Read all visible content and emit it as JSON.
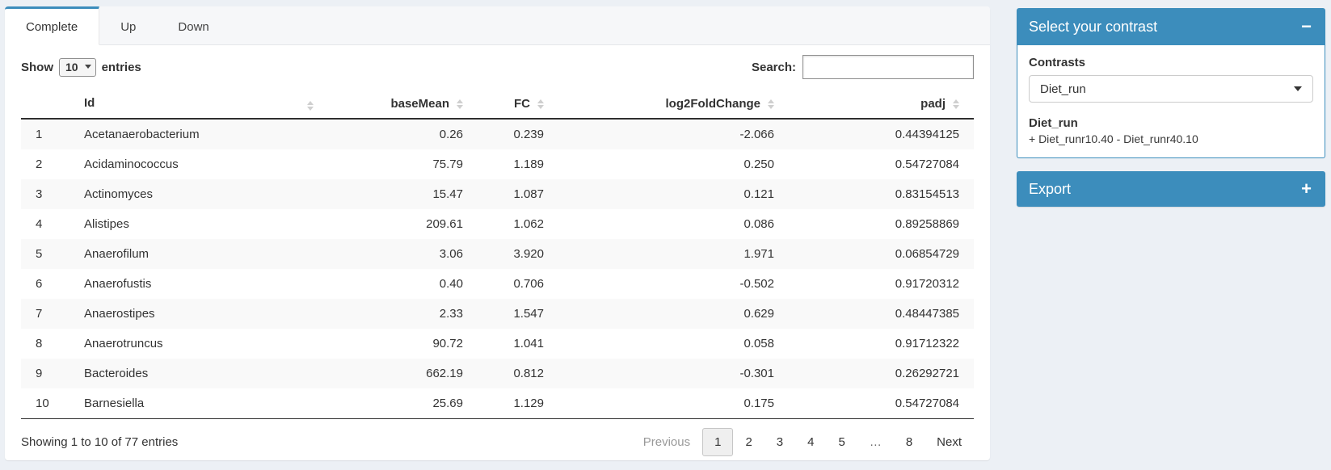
{
  "colors": {
    "accent": "#3c8dbc",
    "page_bg": "#ecf0f5"
  },
  "tabs": {
    "complete": "Complete",
    "up": "Up",
    "down": "Down"
  },
  "length_control": {
    "show_label": "Show",
    "selected": "10",
    "entries_label": "entries"
  },
  "search": {
    "label": "Search:",
    "value": "",
    "placeholder": ""
  },
  "table": {
    "columns": [
      "",
      "Id",
      "baseMean",
      "FC",
      "log2FoldChange",
      "padj"
    ],
    "rows": [
      [
        "1",
        "Acetanaerobacterium",
        "0.26",
        "0.239",
        "-2.066",
        "0.44394125"
      ],
      [
        "2",
        "Acidaminococcus",
        "75.79",
        "1.189",
        "0.250",
        "0.54727084"
      ],
      [
        "3",
        "Actinomyces",
        "15.47",
        "1.087",
        "0.121",
        "0.83154513"
      ],
      [
        "4",
        "Alistipes",
        "209.61",
        "1.062",
        "0.086",
        "0.89258869"
      ],
      [
        "5",
        "Anaerofilum",
        "3.06",
        "3.920",
        "1.971",
        "0.06854729"
      ],
      [
        "6",
        "Anaerofustis",
        "0.40",
        "0.706",
        "-0.502",
        "0.91720312"
      ],
      [
        "7",
        "Anaerostipes",
        "2.33",
        "1.547",
        "0.629",
        "0.48447385"
      ],
      [
        "8",
        "Anaerotruncus",
        "90.72",
        "1.041",
        "0.058",
        "0.91712322"
      ],
      [
        "9",
        "Bacteroides",
        "662.19",
        "0.812",
        "-0.301",
        "0.26292721"
      ],
      [
        "10",
        "Barnesiella",
        "25.69",
        "1.129",
        "0.175",
        "0.54727084"
      ]
    ],
    "info": "Showing 1 to 10 of 77 entries"
  },
  "pagination": {
    "previous": "Previous",
    "pages": [
      "1",
      "2",
      "3",
      "4",
      "5",
      "…",
      "8"
    ],
    "current": "1",
    "next": "Next"
  },
  "contrast_box": {
    "title": "Select your contrast",
    "collapse_icon": "−",
    "contrasts_label": "Contrasts",
    "selected_contrast": "Diet_run",
    "contrast_name": "Diet_run",
    "contrast_formula": "+ Diet_runr10.40 - Diet_runr40.10"
  },
  "export_box": {
    "title": "Export",
    "expand_icon": "+"
  }
}
